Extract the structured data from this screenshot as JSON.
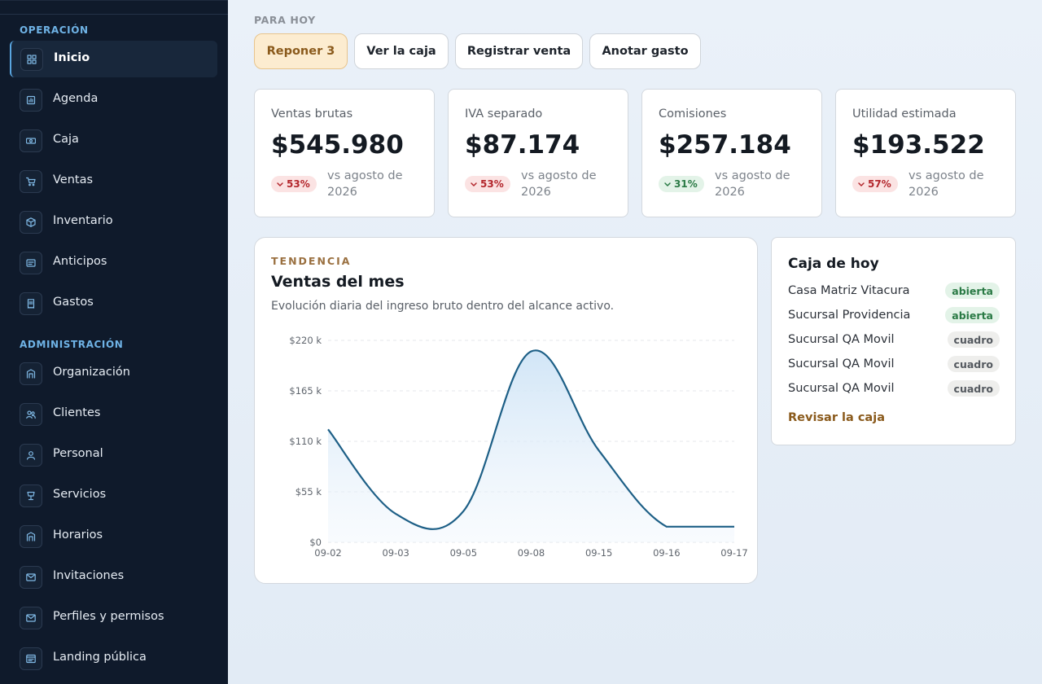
{
  "sidebar": {
    "sections": [
      {
        "title": "OPERACIÓN",
        "items": [
          {
            "label": "Inicio",
            "icon": "grid-icon",
            "active": true
          },
          {
            "label": "Agenda",
            "icon": "calendar-icon"
          },
          {
            "label": "Caja",
            "icon": "cash-icon"
          },
          {
            "label": "Ventas",
            "icon": "cart-icon"
          },
          {
            "label": "Inventario",
            "icon": "box-icon"
          },
          {
            "label": "Anticipos",
            "icon": "wallet-icon"
          },
          {
            "label": "Gastos",
            "icon": "receipt-icon"
          }
        ]
      },
      {
        "title": "ADMINISTRACIÓN",
        "items": [
          {
            "label": "Organización",
            "icon": "building-icon"
          },
          {
            "label": "Clientes",
            "icon": "users-icon"
          },
          {
            "label": "Personal",
            "icon": "user-icon"
          },
          {
            "label": "Servicios",
            "icon": "cup-icon"
          },
          {
            "label": "Horarios",
            "icon": "building-icon"
          },
          {
            "label": "Invitaciones",
            "icon": "mail-icon"
          },
          {
            "label": "Perfiles y permisos",
            "icon": "mail-icon"
          },
          {
            "label": "Landing pública",
            "icon": "browser-icon"
          }
        ]
      }
    ]
  },
  "quick": {
    "heading": "PARA HOY",
    "buttons": [
      "Reponer 3",
      "Ver la caja",
      "Registrar venta",
      "Anotar gasto"
    ]
  },
  "kpis": [
    {
      "label": "Ventas brutas",
      "value": "$545.980",
      "delta": "53%",
      "trend": "down",
      "compare": "vs agosto de 2026"
    },
    {
      "label": "IVA separado",
      "value": "$87.174",
      "delta": "53%",
      "trend": "down",
      "compare": "vs agosto de 2026"
    },
    {
      "label": "Comisiones",
      "value": "$257.184",
      "delta": "31%",
      "trend": "up",
      "compare": "vs agosto de 2026"
    },
    {
      "label": "Utilidad estimada",
      "value": "$193.522",
      "delta": "57%",
      "trend": "down",
      "compare": "vs agosto de 2026"
    }
  ],
  "chart": {
    "eyebrow": "TENDENCIA",
    "title": "Ventas del mes",
    "subtitle": "Evolución diaria del ingreso bruto dentro del alcance activo."
  },
  "chart_data": {
    "type": "area",
    "categories": [
      "09-02",
      "09-03",
      "09-05",
      "09-08",
      "09-15",
      "09-16",
      "09-17"
    ],
    "values": [
      123000,
      31000,
      34000,
      208000,
      100000,
      17000,
      17000
    ],
    "ylim": [
      0,
      220000
    ],
    "yticks": [
      {
        "value": 0,
        "label": "$0"
      },
      {
        "value": 55000,
        "label": "$55 k"
      },
      {
        "value": 110000,
        "label": "$110 k"
      },
      {
        "value": 165000,
        "label": "$165 k"
      },
      {
        "value": 220000,
        "label": "$220 k"
      }
    ],
    "grid": true,
    "color": "#1d5f86"
  },
  "caja": {
    "title": "Caja de hoy",
    "rows": [
      {
        "name": "Casa Matriz Vitacura",
        "status": "abierta"
      },
      {
        "name": "Sucursal Providencia",
        "status": "abierta"
      },
      {
        "name": "Sucursal QA Movil",
        "status": "cuadro"
      },
      {
        "name": "Sucursal QA Movil",
        "status": "cuadro"
      },
      {
        "name": "Sucursal QA Movil",
        "status": "cuadro"
      }
    ],
    "link": "Revisar la caja"
  }
}
